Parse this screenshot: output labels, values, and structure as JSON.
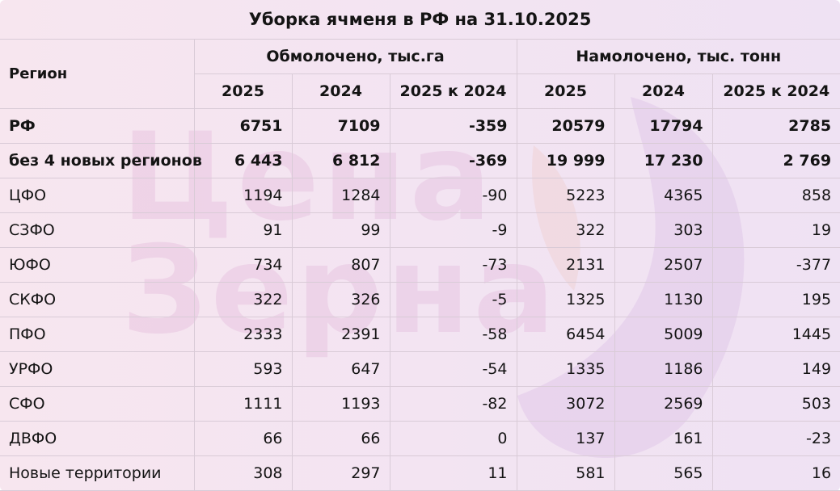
{
  "title": "Уборка ячменя в РФ на 31.10.2025",
  "header": {
    "region": "Регион",
    "group1": "Обмолочено, тыс.га",
    "group2": "Намолочено, тыс. тонн",
    "sub": [
      "2025",
      "2024",
      "2025 к 2024",
      "2025",
      "2024",
      "2025 к 2024"
    ]
  },
  "rows": [
    {
      "region": "РФ",
      "bold": true,
      "values": [
        "6751",
        "7109",
        "-359",
        "20579",
        "17794",
        "2785"
      ]
    },
    {
      "region": "без 4 новых регионов",
      "bold": true,
      "values": [
        "6 443",
        "6 812",
        "-369",
        "19 999",
        "17 230",
        "2 769"
      ]
    },
    {
      "region": "ЦФО",
      "bold": false,
      "values": [
        "1194",
        "1284",
        "-90",
        "5223",
        "4365",
        "858"
      ]
    },
    {
      "region": "СЗФО",
      "bold": false,
      "values": [
        "91",
        "99",
        "-9",
        "322",
        "303",
        "19"
      ]
    },
    {
      "region": "ЮФО",
      "bold": false,
      "values": [
        "734",
        "807",
        "-73",
        "2131",
        "2507",
        "-377"
      ]
    },
    {
      "region": "СКФО",
      "bold": false,
      "values": [
        "322",
        "326",
        "-5",
        "1325",
        "1130",
        "195"
      ]
    },
    {
      "region": "ПФО",
      "bold": false,
      "values": [
        "2333",
        "2391",
        "-58",
        "6454",
        "5009",
        "1445"
      ]
    },
    {
      "region": "УРФО",
      "bold": false,
      "values": [
        "593",
        "647",
        "-54",
        "1335",
        "1186",
        "149"
      ]
    },
    {
      "region": "СФО",
      "bold": false,
      "values": [
        "1111",
        "1193",
        "-82",
        "3072",
        "2569",
        "503"
      ]
    },
    {
      "region": "ДВФО",
      "bold": false,
      "values": [
        "66",
        "66",
        "0",
        "137",
        "161",
        "-23"
      ]
    },
    {
      "region": "Новые территории",
      "bold": false,
      "values": [
        "308",
        "297",
        "11",
        "581",
        "565",
        "16"
      ]
    }
  ],
  "watermark": {
    "text_line1": "Цена",
    "text_line2": "Зерна",
    "color": "#d696c8"
  }
}
